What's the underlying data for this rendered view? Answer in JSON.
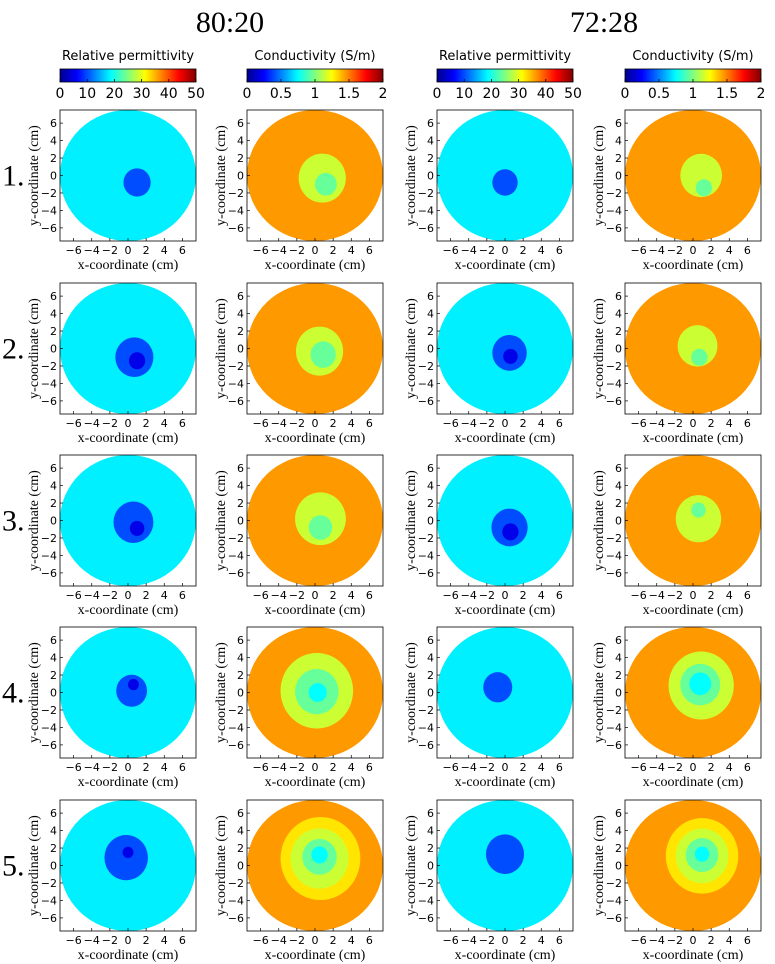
{
  "headings": {
    "group_left": "80:20",
    "group_right": "72:28"
  },
  "row_labels": [
    "1.",
    "2.",
    "3.",
    "4.",
    "5."
  ],
  "colorbars": [
    {
      "title": "Relative permittivity",
      "ticks": [
        "0",
        "10",
        "20",
        "30",
        "40",
        "50"
      ],
      "range": [
        0,
        50
      ]
    },
    {
      "title": "Conductivity (S/m)",
      "ticks": [
        "0",
        "0.5",
        "1",
        "1.5",
        "2"
      ],
      "range": [
        0,
        2
      ]
    },
    {
      "title": "Relative permittivity",
      "ticks": [
        "0",
        "10",
        "20",
        "30",
        "40",
        "50"
      ],
      "range": [
        0,
        50
      ]
    },
    {
      "title": "Conductivity (S/m)",
      "ticks": [
        "0",
        "0.5",
        "1",
        "1.5",
        "2"
      ],
      "range": [
        0,
        2
      ]
    }
  ],
  "colormap": "jet",
  "axis_labels": {
    "x": "x-coordinate (cm)",
    "y": "y-coordinate (cm)",
    "x_ticks": [
      "−6",
      "−4",
      "−2",
      "0",
      "2",
      "4",
      "6"
    ],
    "y_ticks": [
      "6",
      "4",
      "2",
      "0",
      "−2",
      "−4",
      "−6"
    ]
  },
  "chart_data": {
    "type": "heatmap",
    "description_grid": "5 rows x 4 columns of circular contour maps",
    "x_range": [
      -7.5,
      7.5
    ],
    "y_range": [
      -7.5,
      7.5
    ],
    "domain_radius_cm": 7.5,
    "columns": [
      "80:20 relative permittivity",
      "80:20 conductivity",
      "72:28 relative permittivity",
      "72:28 conductivity"
    ],
    "rows": [
      [
        {
          "background": 18,
          "blobs": [
            {
              "x": 1.0,
              "y": -0.8,
              "r": 1.5,
              "v": 10
            }
          ]
        },
        {
          "background": 1.45,
          "blobs": [
            {
              "x": 0.8,
              "y": -0.3,
              "r": 2.6,
              "v": 1.15
            },
            {
              "x": 1.2,
              "y": -1.0,
              "r": 1.2,
              "v": 0.95
            }
          ]
        },
        {
          "background": 18,
          "blobs": [
            {
              "x": 0.0,
              "y": -0.8,
              "r": 1.4,
              "v": 10
            }
          ]
        },
        {
          "background": 1.45,
          "blobs": [
            {
              "x": 0.9,
              "y": 0.0,
              "r": 2.3,
              "v": 1.15
            },
            {
              "x": 1.2,
              "y": -1.4,
              "r": 0.9,
              "v": 0.95
            }
          ]
        }
      ],
      [
        {
          "background": 18,
          "blobs": [
            {
              "x": 0.7,
              "y": -1.0,
              "r": 2.1,
              "v": 10
            },
            {
              "x": 1.0,
              "y": -1.4,
              "r": 0.9,
              "v": 5
            }
          ]
        },
        {
          "background": 1.45,
          "blobs": [
            {
              "x": 0.5,
              "y": -0.3,
              "r": 2.6,
              "v": 1.15
            },
            {
              "x": 0.9,
              "y": -0.7,
              "r": 1.4,
              "v": 0.95
            }
          ]
        },
        {
          "background": 18,
          "blobs": [
            {
              "x": 0.5,
              "y": -0.5,
              "r": 1.9,
              "v": 10
            },
            {
              "x": 0.6,
              "y": -0.9,
              "r": 0.8,
              "v": 5
            }
          ]
        },
        {
          "background": 1.45,
          "blobs": [
            {
              "x": 0.5,
              "y": 0.3,
              "r": 2.2,
              "v": 1.15
            },
            {
              "x": 0.7,
              "y": -1.0,
              "r": 0.9,
              "v": 0.95
            }
          ]
        }
      ],
      [
        {
          "background": 18,
          "blobs": [
            {
              "x": 0.6,
              "y": -0.2,
              "r": 2.2,
              "v": 10
            },
            {
              "x": 1.0,
              "y": -0.9,
              "r": 0.8,
              "v": 5
            }
          ]
        },
        {
          "background": 1.45,
          "blobs": [
            {
              "x": 0.6,
              "y": 0.2,
              "r": 2.8,
              "v": 1.15
            },
            {
              "x": 0.6,
              "y": -0.8,
              "r": 1.3,
              "v": 0.95
            }
          ]
        },
        {
          "background": 18,
          "blobs": [
            {
              "x": 0.5,
              "y": -0.8,
              "r": 2.0,
              "v": 10
            },
            {
              "x": 0.6,
              "y": -1.3,
              "r": 0.9,
              "v": 5
            }
          ]
        },
        {
          "background": 1.45,
          "blobs": [
            {
              "x": 0.6,
              "y": 0.2,
              "r": 2.5,
              "v": 1.15
            },
            {
              "x": 0.6,
              "y": 1.2,
              "r": 0.8,
              "v": 0.95
            }
          ]
        }
      ],
      [
        {
          "background": 18,
          "blobs": [
            {
              "x": 0.4,
              "y": 0.2,
              "r": 1.7,
              "v": 10
            },
            {
              "x": 0.6,
              "y": 0.9,
              "r": 0.6,
              "v": 5
            }
          ]
        },
        {
          "background": 1.45,
          "blobs": [
            {
              "x": 0.2,
              "y": 0.2,
              "r": 4.0,
              "v": 1.15
            },
            {
              "x": 0.2,
              "y": 0.1,
              "r": 2.4,
              "v": 0.95
            },
            {
              "x": 0.3,
              "y": 0.0,
              "r": 1.0,
              "v": 0.75
            }
          ]
        },
        {
          "background": 18,
          "blobs": [
            {
              "x": -0.8,
              "y": 0.6,
              "r": 1.6,
              "v": 10
            }
          ]
        },
        {
          "background": 1.45,
          "blobs": [
            {
              "x": 0.9,
              "y": 0.8,
              "r": 3.6,
              "v": 1.15
            },
            {
              "x": 0.8,
              "y": 0.9,
              "r": 2.2,
              "v": 0.95
            },
            {
              "x": 0.8,
              "y": 1.0,
              "r": 1.2,
              "v": 0.75
            }
          ]
        }
      ],
      [
        {
          "background": 18,
          "blobs": [
            {
              "x": -0.2,
              "y": 0.9,
              "r": 2.4,
              "v": 10
            },
            {
              "x": 0.0,
              "y": 1.5,
              "r": 0.6,
              "v": 5
            }
          ]
        },
        {
          "background": 1.45,
          "blobs": [
            {
              "x": 0.6,
              "y": 0.8,
              "r": 4.4,
              "v": 1.3
            },
            {
              "x": 0.5,
              "y": 0.8,
              "r": 3.2,
              "v": 1.15
            },
            {
              "x": 0.5,
              "y": 1.0,
              "r": 1.9,
              "v": 0.95
            },
            {
              "x": 0.5,
              "y": 1.2,
              "r": 0.9,
              "v": 0.75
            }
          ]
        },
        {
          "background": 18,
          "blobs": [
            {
              "x": 0.0,
              "y": 1.3,
              "r": 2.1,
              "v": 10
            }
          ]
        },
        {
          "background": 1.45,
          "blobs": [
            {
              "x": 1.0,
              "y": 1.1,
              "r": 4.0,
              "v": 1.3
            },
            {
              "x": 1.0,
              "y": 1.1,
              "r": 2.9,
              "v": 1.15
            },
            {
              "x": 1.0,
              "y": 1.2,
              "r": 1.8,
              "v": 0.95
            },
            {
              "x": 1.0,
              "y": 1.3,
              "r": 0.8,
              "v": 0.75
            }
          ]
        }
      ]
    ]
  }
}
